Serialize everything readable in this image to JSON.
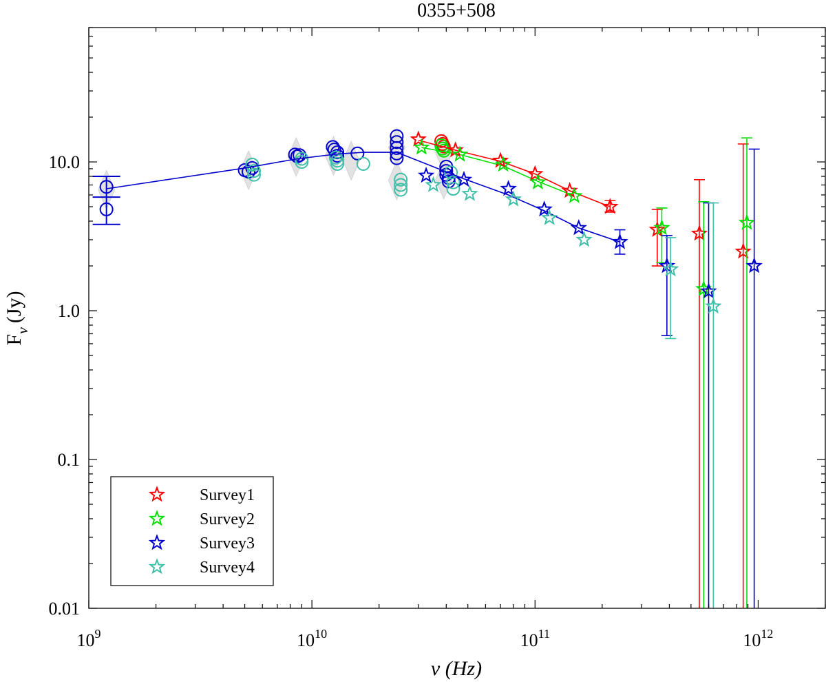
{
  "chart_data": {
    "type": "scatter",
    "title": "0355+508",
    "xlabel": "ν (Hz)",
    "ylabel": "F",
    "ylabel_sub": "ν",
    "ylabel_unit": "(Jy)",
    "x_scale": "log",
    "y_scale": "log",
    "xlim": [
      1000000000.0,
      2000000000000.0
    ],
    "ylim": [
      0.01,
      80
    ],
    "x_ticks": [
      {
        "value": 1000000000.0,
        "base": "10",
        "exp": "9"
      },
      {
        "value": 10000000000.0,
        "base": "10",
        "exp": "10"
      },
      {
        "value": 100000000000.0,
        "base": "10",
        "exp": "11"
      },
      {
        "value": 1000000000000.0,
        "base": "10",
        "exp": "12"
      }
    ],
    "y_ticks": [
      {
        "value": 0.01,
        "label": "0.01"
      },
      {
        "value": 0.1,
        "label": "0.1"
      },
      {
        "value": 1,
        "label": "1.0"
      },
      {
        "value": 10,
        "label": "10.0"
      }
    ],
    "grid": false,
    "legend_position": "bottom-left",
    "archival": {
      "blue_circles": [
        [
          1200000000.0,
          6.8
        ],
        [
          1200000000.0,
          4.8
        ],
        [
          5000000000.0,
          8.8
        ],
        [
          5200000000.0,
          8.6
        ],
        [
          5400000000.0,
          9.1
        ],
        [
          8400000000.0,
          11.2
        ],
        [
          8600000000.0,
          10.9
        ],
        [
          8800000000.0,
          11.1
        ],
        [
          12400000000.0,
          12.6
        ],
        [
          12600000000.0,
          12.1
        ],
        [
          13000000000.0,
          11.6
        ],
        [
          13000000000.0,
          11.0
        ],
        [
          16000000000.0,
          11.4
        ],
        [
          24000000000.0,
          14.9
        ],
        [
          24000000000.0,
          13.6
        ],
        [
          24000000000.0,
          12.4
        ],
        [
          24000000000.0,
          11.4
        ],
        [
          24000000000.0,
          10.6
        ],
        [
          40000000000.0,
          9.3
        ],
        [
          40000000000.0,
          8.7
        ],
        [
          40000000000.0,
          8.2
        ],
        [
          41000000000.0,
          7.8
        ],
        [
          41000000000.0,
          7.4
        ]
      ],
      "teal_circles": [
        [
          5400000000.0,
          9.6
        ],
        [
          5500000000.0,
          8.7
        ],
        [
          5500000000.0,
          8.2
        ],
        [
          9000000000.0,
          10.5
        ],
        [
          9000000000.0,
          10.0
        ],
        [
          12800000000.0,
          10.7
        ],
        [
          13000000000.0,
          10.2
        ],
        [
          13000000000.0,
          9.7
        ],
        [
          17000000000.0,
          9.7
        ],
        [
          25000000000.0,
          7.6
        ],
        [
          25000000000.0,
          7.0
        ],
        [
          25000000000.0,
          6.5
        ],
        [
          42000000000.0,
          8.5
        ],
        [
          43000000000.0,
          7.3
        ],
        [
          43000000000.0,
          6.6
        ]
      ],
      "red_circles": [
        [
          38000000000.0,
          13.8
        ],
        [
          38500000000.0,
          13.2
        ],
        [
          39000000000.0,
          12.7
        ]
      ],
      "green_circles": [
        [
          38000000000.0,
          12.9
        ],
        [
          38500000000.0,
          12.3
        ],
        [
          39000000000.0,
          11.9
        ]
      ],
      "gray_diamonds": [
        [
          1200000000.0,
          6.5
        ],
        [
          5200000000.0,
          8.8
        ],
        [
          8500000000.0,
          10.8
        ],
        [
          12500000000.0,
          11.0
        ],
        [
          15000000000.0,
          10.2
        ],
        [
          24000000000.0,
          12.5
        ],
        [
          24000000000.0,
          7.5
        ],
        [
          39000000000.0,
          11.5
        ],
        [
          39000000000.0,
          7.6
        ]
      ],
      "errorbars_low_freq": [
        {
          "x": 1200000000.0,
          "y": 5.8,
          "lo": 3.8,
          "hi": 8.0
        }
      ]
    },
    "series": [
      {
        "name": "Survey1",
        "color": "#ff0000",
        "x": [
          30000000000.0,
          44000000000.0,
          70000000000.0,
          100000000000.0,
          143000000000.0,
          217000000000.0,
          353000000000.0,
          545000000000.0,
          857000000000.0
        ],
        "y": [
          14.2,
          12.0,
          10.2,
          8.3,
          6.4,
          5.0,
          3.5,
          3.3,
          2.5
        ],
        "yerr_lo": [
          null,
          null,
          null,
          null,
          null,
          4.6,
          2.0,
          0.01,
          0.01
        ],
        "yerr_hi": [
          null,
          null,
          null,
          null,
          null,
          5.5,
          4.8,
          7.6,
          13.2
        ]
      },
      {
        "name": "Survey2",
        "color": "#00e000",
        "x": [
          31000000000.0,
          46000000000.0,
          72000000000.0,
          103000000000.0,
          150000000000.0,
          370000000000.0,
          570000000000.0,
          890000000000.0
        ],
        "y": [
          12.5,
          11.2,
          9.6,
          7.3,
          5.9,
          3.6,
          1.4,
          3.9
        ],
        "yerr_lo": [
          null,
          null,
          null,
          null,
          null,
          2.1,
          0.01,
          0.01
        ],
        "yerr_hi": [
          null,
          null,
          null,
          null,
          null,
          4.9,
          5.4,
          14.5
        ]
      },
      {
        "name": "Survey3",
        "color": "#0000cc",
        "x": [
          32500000000.0,
          48000000000.0,
          76000000000.0,
          110000000000.0,
          157000000000.0,
          240000000000.0,
          390000000000.0,
          600000000000.0,
          960000000000.0
        ],
        "y": [
          8.1,
          7.6,
          6.6,
          4.8,
          3.6,
          2.9,
          2.0,
          1.35,
          2.0
        ],
        "yerr_lo": [
          null,
          null,
          null,
          null,
          null,
          2.4,
          0.68,
          0.01,
          0.01
        ],
        "yerr_hi": [
          null,
          null,
          null,
          null,
          null,
          3.5,
          3.2,
          5.3,
          12.2
        ]
      },
      {
        "name": "Survey4",
        "color": "#3fbfa8",
        "x": [
          35000000000.0,
          51000000000.0,
          80000000000.0,
          116000000000.0,
          166000000000.0,
          405000000000.0,
          630000000000.0
        ],
        "y": [
          7.0,
          6.1,
          5.6,
          4.2,
          3.0,
          1.9,
          1.07
        ],
        "yerr_lo": [
          null,
          null,
          null,
          null,
          null,
          0.65,
          0.01
        ],
        "yerr_hi": [
          null,
          null,
          null,
          null,
          null,
          3.1,
          5.3
        ]
      }
    ],
    "fit_lines": [
      {
        "color": "#0000cc",
        "x": [
          1200000000.0,
          5000000000.0,
          8600000000.0,
          13000000000.0,
          17000000000.0,
          24000000000.0,
          32500000000.0,
          48000000000.0,
          76000000000.0,
          110000000000.0,
          157000000000.0,
          240000000000.0
        ],
        "y": [
          6.6,
          9.1,
          10.5,
          11.3,
          11.6,
          11.6,
          9.7,
          7.7,
          6.0,
          4.7,
          3.6,
          2.9
        ]
      },
      {
        "color": "#ff0000",
        "x": [
          30000000000.0,
          44000000000.0,
          70000000000.0,
          100000000000.0,
          143000000000.0,
          217000000000.0
        ],
        "y": [
          14.0,
          12.0,
          10.1,
          8.3,
          6.4,
          5.0
        ]
      },
      {
        "color": "#00e000",
        "x": [
          31000000000.0,
          46000000000.0,
          72000000000.0,
          103000000000.0,
          150000000000.0
        ],
        "y": [
          12.5,
          11.2,
          9.4,
          7.4,
          5.9
        ]
      }
    ]
  }
}
